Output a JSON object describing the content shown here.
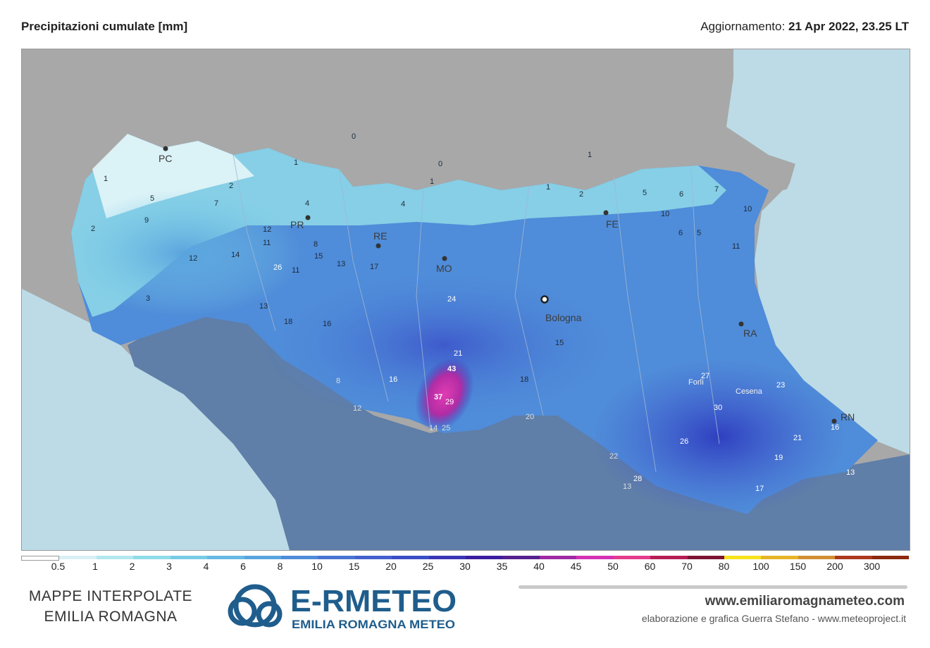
{
  "header": {
    "title": "Precipitazioni cumulate [mm]",
    "update_label": "Aggiornamento:",
    "update_value": "21 Apr 2022, 23.25 LT"
  },
  "colors": {
    "sea": "#bcdbe6",
    "land_outside": "#a8a8a8",
    "tuscany": "#5f7ea8",
    "accent_logo": "#1f5d8c"
  },
  "cities": [
    {
      "name": "PC"
    },
    {
      "name": "PR"
    },
    {
      "name": "RE"
    },
    {
      "name": "MO"
    },
    {
      "name": "Bologna"
    },
    {
      "name": "FE"
    },
    {
      "name": "RA"
    },
    {
      "name": "Forlì"
    },
    {
      "name": "Cesena"
    },
    {
      "name": "RN"
    }
  ],
  "station_values": [
    "0",
    "0",
    "1",
    "1",
    "1",
    "1",
    "1",
    "2",
    "2",
    "2",
    "3",
    "4",
    "5",
    "5",
    "7",
    "9",
    "4",
    "6",
    "7",
    "12",
    "10",
    "11",
    "12",
    "13",
    "14",
    "15",
    "26",
    "11",
    "18",
    "8",
    "13",
    "16",
    "17",
    "21",
    "24",
    "43",
    "37",
    "29",
    "25",
    "14",
    "12",
    "8",
    "16",
    "15",
    "18",
    "22",
    "28",
    "13",
    "26",
    "30",
    "27",
    "17",
    "19",
    "23",
    "11",
    "13",
    "16",
    "20",
    "21",
    "10",
    "6",
    "5"
  ],
  "legend": {
    "ticks": [
      "0.5",
      "1",
      "2",
      "3",
      "4",
      "6",
      "8",
      "10",
      "15",
      "20",
      "25",
      "30",
      "35",
      "40",
      "45",
      "50",
      "60",
      "70",
      "80",
      "100",
      "150",
      "200",
      "300"
    ],
    "colors": [
      "#ffffff",
      "#d9f0f4",
      "#b3e8ef",
      "#8fdbe8",
      "#78cbe6",
      "#67b9e2",
      "#5aa4de",
      "#4f8cd9",
      "#4a74d4",
      "#4561cf",
      "#3a4ec8",
      "#3a36b8",
      "#3b1fa0",
      "#55218f",
      "#a02aa5",
      "#d431b5",
      "#e53c8d",
      "#b61e56",
      "#7d1433",
      "#f7e31b",
      "#e6b427",
      "#d28f33",
      "#ad3a1d"
    ]
  },
  "footer": {
    "left_line1": "MAPPE INTERPOLATE",
    "left_line2": "EMILIA ROMAGNA",
    "logo_main": "E-RMETEO",
    "logo_sub": "EMILIA ROMAGNA METEO",
    "site": "www.emiliaromagnameteo.com",
    "credit": "elaborazione e grafica Guerra Stefano - www.meteoproject.it"
  }
}
